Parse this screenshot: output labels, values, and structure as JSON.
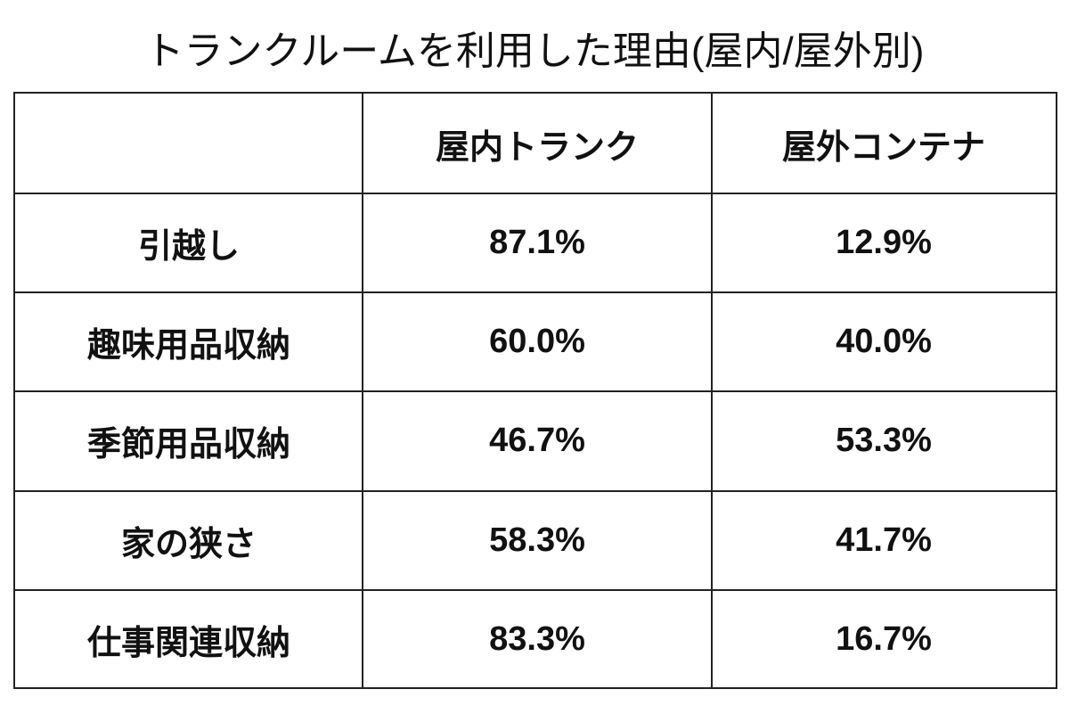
{
  "title": "トランクルームを利用した理由(屋内/屋外別)",
  "table": {
    "header": [
      "屋内トランク",
      "屋外コンテナ"
    ],
    "rows": [
      [
        "引越し",
        "87.1%",
        "12.9%"
      ],
      [
        "趣味用品収納",
        "60.0%",
        "40.0%"
      ],
      [
        "季節用品収納",
        "46.7%",
        "53.3%"
      ],
      [
        "家の狭さ",
        "58.3%",
        "41.7%"
      ],
      [
        "仕事関連収納",
        "83.3%",
        "16.7%"
      ]
    ]
  }
}
